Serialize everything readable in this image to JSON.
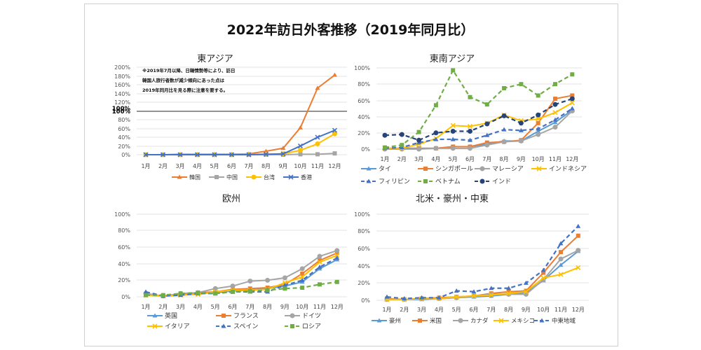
{
  "title": "2022年訪日外客推移（2019年同月比）",
  "chart_data": [
    {
      "type": "line",
      "title": "東アジア",
      "xlabel": "",
      "ylabel": "",
      "categories": [
        "1月",
        "2月",
        "3月",
        "4月",
        "5月",
        "6月",
        "7月",
        "8月",
        "9月",
        "10月",
        "11月",
        "12月"
      ],
      "yticks": [
        "0%",
        "20%",
        "40%",
        "60%",
        "80%",
        "100%",
        "100%",
        "120%",
        "140%",
        "160%",
        "180%",
        "200%"
      ],
      "ylim": [
        0,
        200
      ],
      "note": [
        "※2019年7月以降、日韓情勢等により、訪日",
        "韓国人旅行者数が減少傾向にあった点は",
        "2019年同月比を見る際に注意を要する。"
      ],
      "series": [
        {
          "name": "韓国",
          "color": "#ED7D31",
          "dash": false,
          "marker": "triangle",
          "values": [
            0,
            0,
            1,
            1,
            1,
            1,
            2,
            8,
            15,
            62,
            153,
            183
          ]
        },
        {
          "name": "中国",
          "color": "#A5A5A5",
          "dash": false,
          "marker": "square",
          "values": [
            0,
            0,
            0,
            0,
            0,
            0,
            0,
            0,
            0,
            1,
            1,
            3
          ]
        },
        {
          "name": "台湾",
          "color": "#FFC000",
          "dash": false,
          "marker": "circle",
          "values": [
            0,
            0,
            0,
            0,
            0,
            0,
            1,
            1,
            2,
            10,
            25,
            48
          ]
        },
        {
          "name": "香港",
          "color": "#4472C4",
          "dash": false,
          "marker": "x",
          "values": [
            0,
            0,
            0,
            0,
            0,
            0,
            0,
            1,
            2,
            20,
            40,
            56
          ]
        }
      ]
    },
    {
      "type": "line",
      "title": "東南アジア",
      "xlabel": "",
      "ylabel": "",
      "categories": [
        "1月",
        "2月",
        "3月",
        "4月",
        "5月",
        "6月",
        "7月",
        "8月",
        "9月",
        "10月",
        "11月",
        "12月"
      ],
      "yticks": [
        "0%",
        "20%",
        "40%",
        "60%",
        "80%",
        "100%"
      ],
      "ylim": [
        0,
        100
      ],
      "series": [
        {
          "name": "タイ",
          "color": "#5B9BD5",
          "dash": false,
          "marker": "triangle",
          "values": [
            1,
            1,
            1,
            1,
            3,
            3,
            6,
            10,
            10,
            22,
            33,
            48
          ]
        },
        {
          "name": "シンガポール",
          "color": "#ED7D31",
          "dash": false,
          "marker": "square",
          "values": [
            1,
            1,
            1,
            1,
            3,
            3,
            8,
            9,
            11,
            32,
            62,
            66
          ]
        },
        {
          "name": "マレーシア",
          "color": "#A5A5A5",
          "dash": false,
          "marker": "circle",
          "values": [
            0,
            0,
            0,
            1,
            1,
            1,
            5,
            9,
            10,
            18,
            27,
            47
          ]
        },
        {
          "name": "インドネシア",
          "color": "#FFC000",
          "dash": false,
          "marker": "x",
          "values": [
            1,
            1,
            6,
            13,
            29,
            28,
            32,
            42,
            35,
            37,
            45,
            57
          ]
        },
        {
          "name": "フィリピン",
          "color": "#4472C4",
          "dash": true,
          "marker": "triangle",
          "values": [
            1,
            2,
            8,
            12,
            12,
            11,
            17,
            24,
            23,
            25,
            36,
            50
          ]
        },
        {
          "name": "ベトナム",
          "color": "#70AD47",
          "dash": true,
          "marker": "square",
          "values": [
            2,
            5,
            21,
            54,
            97,
            64,
            55,
            75,
            80,
            66,
            80,
            92
          ]
        },
        {
          "name": "インド",
          "color": "#264478",
          "dash": true,
          "marker": "circle",
          "values": [
            17,
            18,
            11,
            20,
            22,
            22,
            31,
            41,
            32,
            42,
            55,
            62
          ]
        }
      ]
    },
    {
      "type": "line",
      "title": "欧州",
      "xlabel": "",
      "ylabel": "",
      "categories": [
        "1月",
        "2月",
        "3月",
        "4月",
        "5月",
        "6月",
        "7月",
        "8月",
        "9月",
        "10月",
        "11月",
        "12月"
      ],
      "yticks": [
        "0%",
        "20%",
        "40%",
        "60%",
        "80%",
        "100%"
      ],
      "ylim": [
        0,
        100
      ],
      "series": [
        {
          "name": "英国",
          "color": "#5B9BD5",
          "dash": false,
          "marker": "triangle",
          "values": [
            2,
            1,
            2,
            4,
            5,
            7,
            8,
            10,
            13,
            18,
            34,
            45
          ]
        },
        {
          "name": "フランス",
          "color": "#ED7D31",
          "dash": false,
          "marker": "square",
          "values": [
            3,
            1,
            3,
            5,
            6,
            9,
            10,
            11,
            15,
            28,
            44,
            53
          ]
        },
        {
          "name": "ドイツ",
          "color": "#A5A5A5",
          "dash": false,
          "marker": "circle",
          "values": [
            4,
            1,
            4,
            5,
            10,
            13,
            19,
            20,
            23,
            34,
            49,
            56
          ]
        },
        {
          "name": "イタリア",
          "color": "#FFC000",
          "dash": false,
          "marker": "x",
          "values": [
            2,
            1,
            2,
            3,
            6,
            8,
            8,
            9,
            17,
            24,
            42,
            50
          ]
        },
        {
          "name": "スペイン",
          "color": "#4472C4",
          "dash": true,
          "marker": "triangle",
          "values": [
            6,
            1,
            2,
            4,
            4,
            6,
            6,
            6,
            14,
            20,
            36,
            47
          ]
        },
        {
          "name": "ロシア",
          "color": "#70AD47",
          "dash": true,
          "marker": "square",
          "values": [
            2,
            2,
            4,
            5,
            4,
            6,
            7,
            8,
            10,
            11,
            15,
            18
          ]
        }
      ]
    },
    {
      "type": "line",
      "title": "北米・豪州・中東",
      "xlabel": "",
      "ylabel": "",
      "categories": [
        "1月",
        "2月",
        "3月",
        "4月",
        "5月",
        "6月",
        "7月",
        "8月",
        "9月",
        "10月",
        "11月",
        "12月"
      ],
      "yticks": [
        "0%",
        "20%",
        "40%",
        "60%",
        "80%",
        "100%"
      ],
      "ylim": [
        0,
        100
      ],
      "series": [
        {
          "name": "豪州",
          "color": "#5B9BD5",
          "dash": false,
          "marker": "triangle",
          "values": [
            1,
            1,
            1,
            2,
            3,
            4,
            5,
            7,
            9,
            23,
            41,
            57
          ]
        },
        {
          "name": "米国",
          "color": "#ED7D31",
          "dash": false,
          "marker": "square",
          "values": [
            2,
            1,
            2,
            3,
            4,
            5,
            8,
            10,
            11,
            32,
            56,
            75
          ]
        },
        {
          "name": "カナダ",
          "color": "#A5A5A5",
          "dash": false,
          "marker": "circle",
          "values": [
            1,
            1,
            2,
            2,
            3,
            5,
            7,
            7,
            7,
            24,
            48,
            58
          ]
        },
        {
          "name": "メキシコ",
          "color": "#FFC000",
          "dash": false,
          "marker": "x",
          "values": [
            1,
            1,
            2,
            2,
            4,
            5,
            6,
            8,
            10,
            26,
            30,
            38
          ]
        },
        {
          "name": "中東地域",
          "color": "#4472C4",
          "dash": true,
          "marker": "triangle",
          "values": [
            4,
            2,
            3,
            3,
            11,
            10,
            14,
            14,
            20,
            35,
            66,
            86
          ]
        }
      ]
    }
  ]
}
